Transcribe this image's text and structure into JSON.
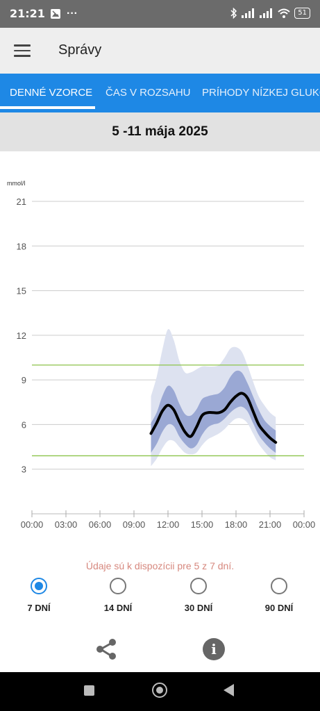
{
  "status_bar": {
    "time": "21:21",
    "more": "···",
    "battery": "51"
  },
  "app_bar": {
    "title": "Správy"
  },
  "tabs": [
    {
      "label": "DENNÉ VZORCE",
      "active": true
    },
    {
      "label": "ČAS V ROZSAHU",
      "active": false
    },
    {
      "label": "PRÍHODY NÍZKEJ GLUKÓ",
      "active": false
    }
  ],
  "date_range": "5 -11 mája 2025",
  "chart_data": {
    "type": "line",
    "ylabel": "mmol/l",
    "ylim": [
      0,
      21
    ],
    "y_ticks": [
      "21",
      "18",
      "15",
      "12",
      "9",
      "6",
      "3"
    ],
    "y_tick_values": [
      21,
      18,
      15,
      12,
      9,
      6,
      3
    ],
    "xlim": [
      0,
      24
    ],
    "x_ticks": [
      "00:00",
      "03:00",
      "06:00",
      "09:00",
      "12:00",
      "15:00",
      "18:00",
      "21:00",
      "00:00"
    ],
    "x_tick_values": [
      0,
      3,
      6,
      9,
      12,
      15,
      18,
      21,
      24
    ],
    "target_range": [
      3.9,
      10.0
    ],
    "target_color": "#8bc34a",
    "median_color": "#000000",
    "inner_band_color": "#9aa8d4",
    "outer_band_color": "#dde2f0",
    "series": [
      {
        "x": [
          10.5,
          11.0,
          11.5,
          12.0,
          12.5,
          13.0,
          13.5,
          14.0,
          14.5,
          15.0,
          15.5,
          16.0,
          16.5,
          17.0,
          17.5,
          18.0,
          18.5,
          19.0,
          19.5,
          20.0,
          20.5,
          21.0,
          21.5
        ],
        "median": [
          5.4,
          6.1,
          6.9,
          7.3,
          7.0,
          6.2,
          5.5,
          5.2,
          5.8,
          6.6,
          6.8,
          6.8,
          6.8,
          7.0,
          7.5,
          7.9,
          8.1,
          7.8,
          6.9,
          6.0,
          5.5,
          5.1,
          4.8
        ],
        "p25": [
          4.1,
          4.7,
          5.5,
          6.0,
          5.9,
          5.2,
          4.7,
          4.4,
          4.6,
          5.3,
          5.8,
          6.0,
          6.1,
          6.4,
          6.8,
          7.1,
          7.2,
          6.9,
          6.1,
          5.3,
          4.8,
          4.4,
          4.1
        ],
        "p75": [
          6.1,
          6.8,
          7.9,
          8.6,
          8.3,
          7.4,
          6.7,
          6.6,
          7.0,
          7.7,
          7.9,
          8.0,
          8.1,
          8.5,
          9.2,
          9.6,
          9.5,
          8.8,
          7.9,
          7.0,
          6.3,
          5.9,
          5.6
        ],
        "p10": [
          3.2,
          3.7,
          4.4,
          4.9,
          4.9,
          4.5,
          4.1,
          4.0,
          4.1,
          4.6,
          5.0,
          5.2,
          5.4,
          5.7,
          6.1,
          6.4,
          6.4,
          6.1,
          5.4,
          4.7,
          4.2,
          3.8,
          3.6
        ],
        "p90": [
          7.9,
          9.2,
          11.0,
          12.4,
          11.7,
          10.3,
          9.5,
          9.5,
          9.7,
          9.9,
          9.9,
          9.9,
          10.0,
          10.5,
          11.1,
          11.2,
          10.9,
          10.0,
          8.9,
          7.9,
          7.3,
          6.8,
          6.5
        ]
      }
    ]
  },
  "availability_text": "Údaje sú k dispozícii pre 5 z 7 dní.",
  "period_options": [
    {
      "label": "7 DNÍ",
      "selected": true
    },
    {
      "label": "14 DNÍ",
      "selected": false
    },
    {
      "label": "30 DNÍ",
      "selected": false
    },
    {
      "label": "90 DNÍ",
      "selected": false
    }
  ],
  "actions": {
    "share_icon": "share-icon",
    "info_icon": "info-icon",
    "info_glyph": "i"
  }
}
